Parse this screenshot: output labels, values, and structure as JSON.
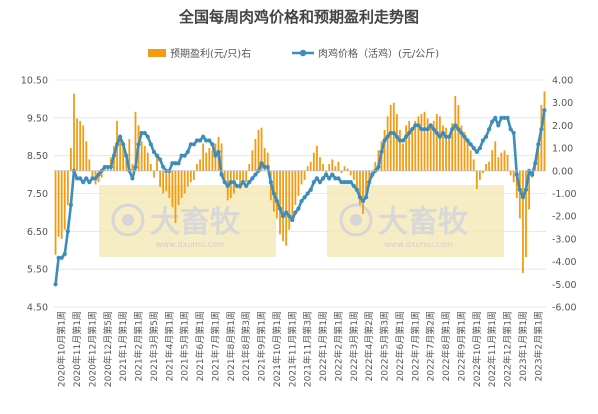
{
  "chart_data": {
    "type": "bar+line",
    "title": "全国每周肉鸡价格和预期盈利走势图",
    "legend_position": "top",
    "colors": {
      "bar": "#f39c12",
      "line": "#3c8dbc"
    },
    "y_left": {
      "min": 4.5,
      "max": 10.5,
      "ticks": [
        "4.50",
        "5.50",
        "6.50",
        "7.50",
        "8.50",
        "9.50",
        "10.50"
      ]
    },
    "y_right": {
      "min": -6,
      "max": 4,
      "ticks": [
        "-6.00",
        "-5.00",
        "-4.00",
        "-3.00",
        "-2.00",
        "-1.00",
        "0.00",
        "1.00",
        "2.00",
        "3.00",
        "4.00"
      ]
    },
    "x_tick_labels": [
      "2020年10月第1周",
      "2020年11月第1周",
      "2020年12月第1周",
      "2020年12月第5周",
      "2021年1月第1周",
      "2021年2月第1周",
      "2021年3月第5周",
      "2021年4月第1周",
      "2021年5月第1周",
      "2021年6月第1周",
      "2021年7月第1周",
      "2021年8月第1周",
      "2021年8月第3周",
      "2021年9月第1周",
      "2021年10月第1周",
      "2021年11月第1周",
      "2021年11月第3周",
      "2022年1月第1周",
      "2022年2月第1周",
      "2022年3月第1周",
      "2022年4月第2周",
      "2022年5月第3周",
      "2022年6月第1周",
      "2022年7月第1周",
      "2022年7月第2周",
      "2022年8月第1周",
      "2022年9月第1周",
      "2022年10月第1周",
      "2022年11月第1周",
      "2022年12月第1周",
      "2023年1月第1周",
      "2023年2月第1周"
    ],
    "series": [
      {
        "name": "预期盈利(元/只)右",
        "axis": "right",
        "kind": "bar",
        "values": [
          -3.7,
          -2.9,
          -3.0,
          -2.6,
          -1.5,
          1.0,
          3.4,
          2.3,
          2.2,
          2.0,
          1.3,
          0.5,
          -0.4,
          -0.6,
          -0.5,
          -0.3,
          0.1,
          0.2,
          0.6,
          1.1,
          2.2,
          1.6,
          1.3,
          0.5,
          1.4,
          0.3,
          2.6,
          2.0,
          1.3,
          1.1,
          0.8,
          0.3,
          -0.3,
          0.6,
          -0.7,
          -1.0,
          -0.9,
          -1.2,
          -1.6,
          -2.3,
          -1.5,
          -1.2,
          -1.0,
          -0.7,
          -0.5,
          -0.4,
          0.3,
          0.5,
          1.2,
          0.8,
          1.0,
          0.9,
          1.2,
          1.5,
          1.2,
          -0.5,
          -1.3,
          -1.2,
          -1.0,
          -0.4,
          -0.8,
          -0.6,
          -0.5,
          0.3,
          0.9,
          1.4,
          1.8,
          1.9,
          1.0,
          0.8,
          -1.3,
          -1.8,
          -2.1,
          -2.8,
          -3.1,
          -3.3,
          -2.6,
          -2.2,
          -1.5,
          -1.1,
          -0.6,
          -0.4,
          0.2,
          0.4,
          0.8,
          1.1,
          0.6,
          0.3,
          -0.2,
          0.3,
          0.5,
          0.2,
          0.4,
          -0.1,
          0.2,
          0.1,
          -0.2,
          -0.4,
          -0.9,
          -1.5,
          -1.9,
          -1.2,
          -0.7,
          -0.3,
          0.4,
          0.9,
          1.3,
          1.8,
          2.4,
          2.9,
          3.0,
          2.5,
          1.8,
          1.2,
          2.0,
          2.2,
          1.9,
          2.2,
          2.4,
          2.5,
          2.6,
          2.3,
          2.0,
          2.2,
          2.5,
          2.4,
          2.0,
          1.9,
          1.5,
          2.1,
          3.3,
          2.9,
          2.0,
          1.7,
          1.4,
          0.9,
          0.5,
          -0.8,
          -0.4,
          -0.1,
          0.3,
          0.4,
          0.9,
          1.3,
          0.6,
          0.8,
          0.9,
          0.7,
          -0.2,
          -0.5,
          -1.2,
          -2.1,
          -4.5,
          -3.8,
          -1.7,
          -0.3,
          0.4,
          1.2,
          2.9,
          3.5
        ]
      },
      {
        "name": "肉鸡价格（活鸡）(元/公斤)",
        "axis": "left",
        "kind": "line",
        "values": [
          5.1,
          5.8,
          5.8,
          5.9,
          6.5,
          7.2,
          8.1,
          7.9,
          7.9,
          7.8,
          7.9,
          7.8,
          7.9,
          7.9,
          8.0,
          8.1,
          8.2,
          8.2,
          8.2,
          8.5,
          8.8,
          9.0,
          8.8,
          8.5,
          8.1,
          7.9,
          8.2,
          8.8,
          9.1,
          9.1,
          9.0,
          8.8,
          8.6,
          8.5,
          8.4,
          8.2,
          8.1,
          8.1,
          8.3,
          8.3,
          8.3,
          8.5,
          8.5,
          8.6,
          8.8,
          8.8,
          8.9,
          8.9,
          9.0,
          8.9,
          8.9,
          8.8,
          8.5,
          8.6,
          8.0,
          7.8,
          7.7,
          7.8,
          7.8,
          7.7,
          7.7,
          7.8,
          7.7,
          7.8,
          7.9,
          8.0,
          8.1,
          8.3,
          8.2,
          8.2,
          7.8,
          7.5,
          7.3,
          7.1,
          6.9,
          7.0,
          6.9,
          6.8,
          7.0,
          7.1,
          7.3,
          7.4,
          7.5,
          7.6,
          7.8,
          7.9,
          7.8,
          7.9,
          8.0,
          7.9,
          8.0,
          7.9,
          7.9,
          7.8,
          7.8,
          7.8,
          7.8,
          7.7,
          7.6,
          7.4,
          7.3,
          7.4,
          7.8,
          8.0,
          8.1,
          8.2,
          8.6,
          8.9,
          9.0,
          9.1,
          9.1,
          9.0,
          8.9,
          8.9,
          9.0,
          9.1,
          9.2,
          9.3,
          9.3,
          9.2,
          9.2,
          9.2,
          9.3,
          9.2,
          9.1,
          9.0,
          9.1,
          9.0,
          9.0,
          9.2,
          9.3,
          9.2,
          9.1,
          9.0,
          8.9,
          8.8,
          8.7,
          8.6,
          8.7,
          8.9,
          9.0,
          9.2,
          9.4,
          9.5,
          9.3,
          9.5,
          9.5,
          9.5,
          9.2,
          9.1,
          8.0,
          7.6,
          7.4,
          7.6,
          8.1,
          8.0,
          8.3,
          8.8,
          9.2,
          9.7
        ]
      }
    ]
  }
}
